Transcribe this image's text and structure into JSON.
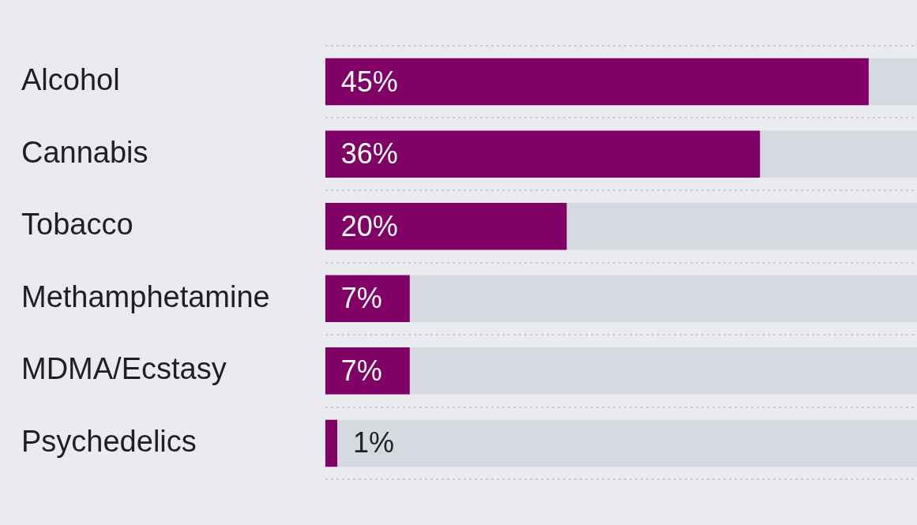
{
  "chart_data": {
    "type": "bar",
    "orientation": "horizontal",
    "categories": [
      "Alcohol",
      "Cannabis",
      "Tobacco",
      "Methamphetamine",
      "MDMA/Ecstasy",
      "Psychedelics"
    ],
    "values": [
      45,
      36,
      20,
      7,
      7,
      1
    ],
    "value_labels": [
      "45%",
      "36%",
      "20%",
      "7%",
      "7%",
      "1%"
    ],
    "color": "#800066",
    "xlim": [
      0,
      49
    ],
    "grid": "y",
    "legend": false,
    "tick_labels": "y"
  }
}
